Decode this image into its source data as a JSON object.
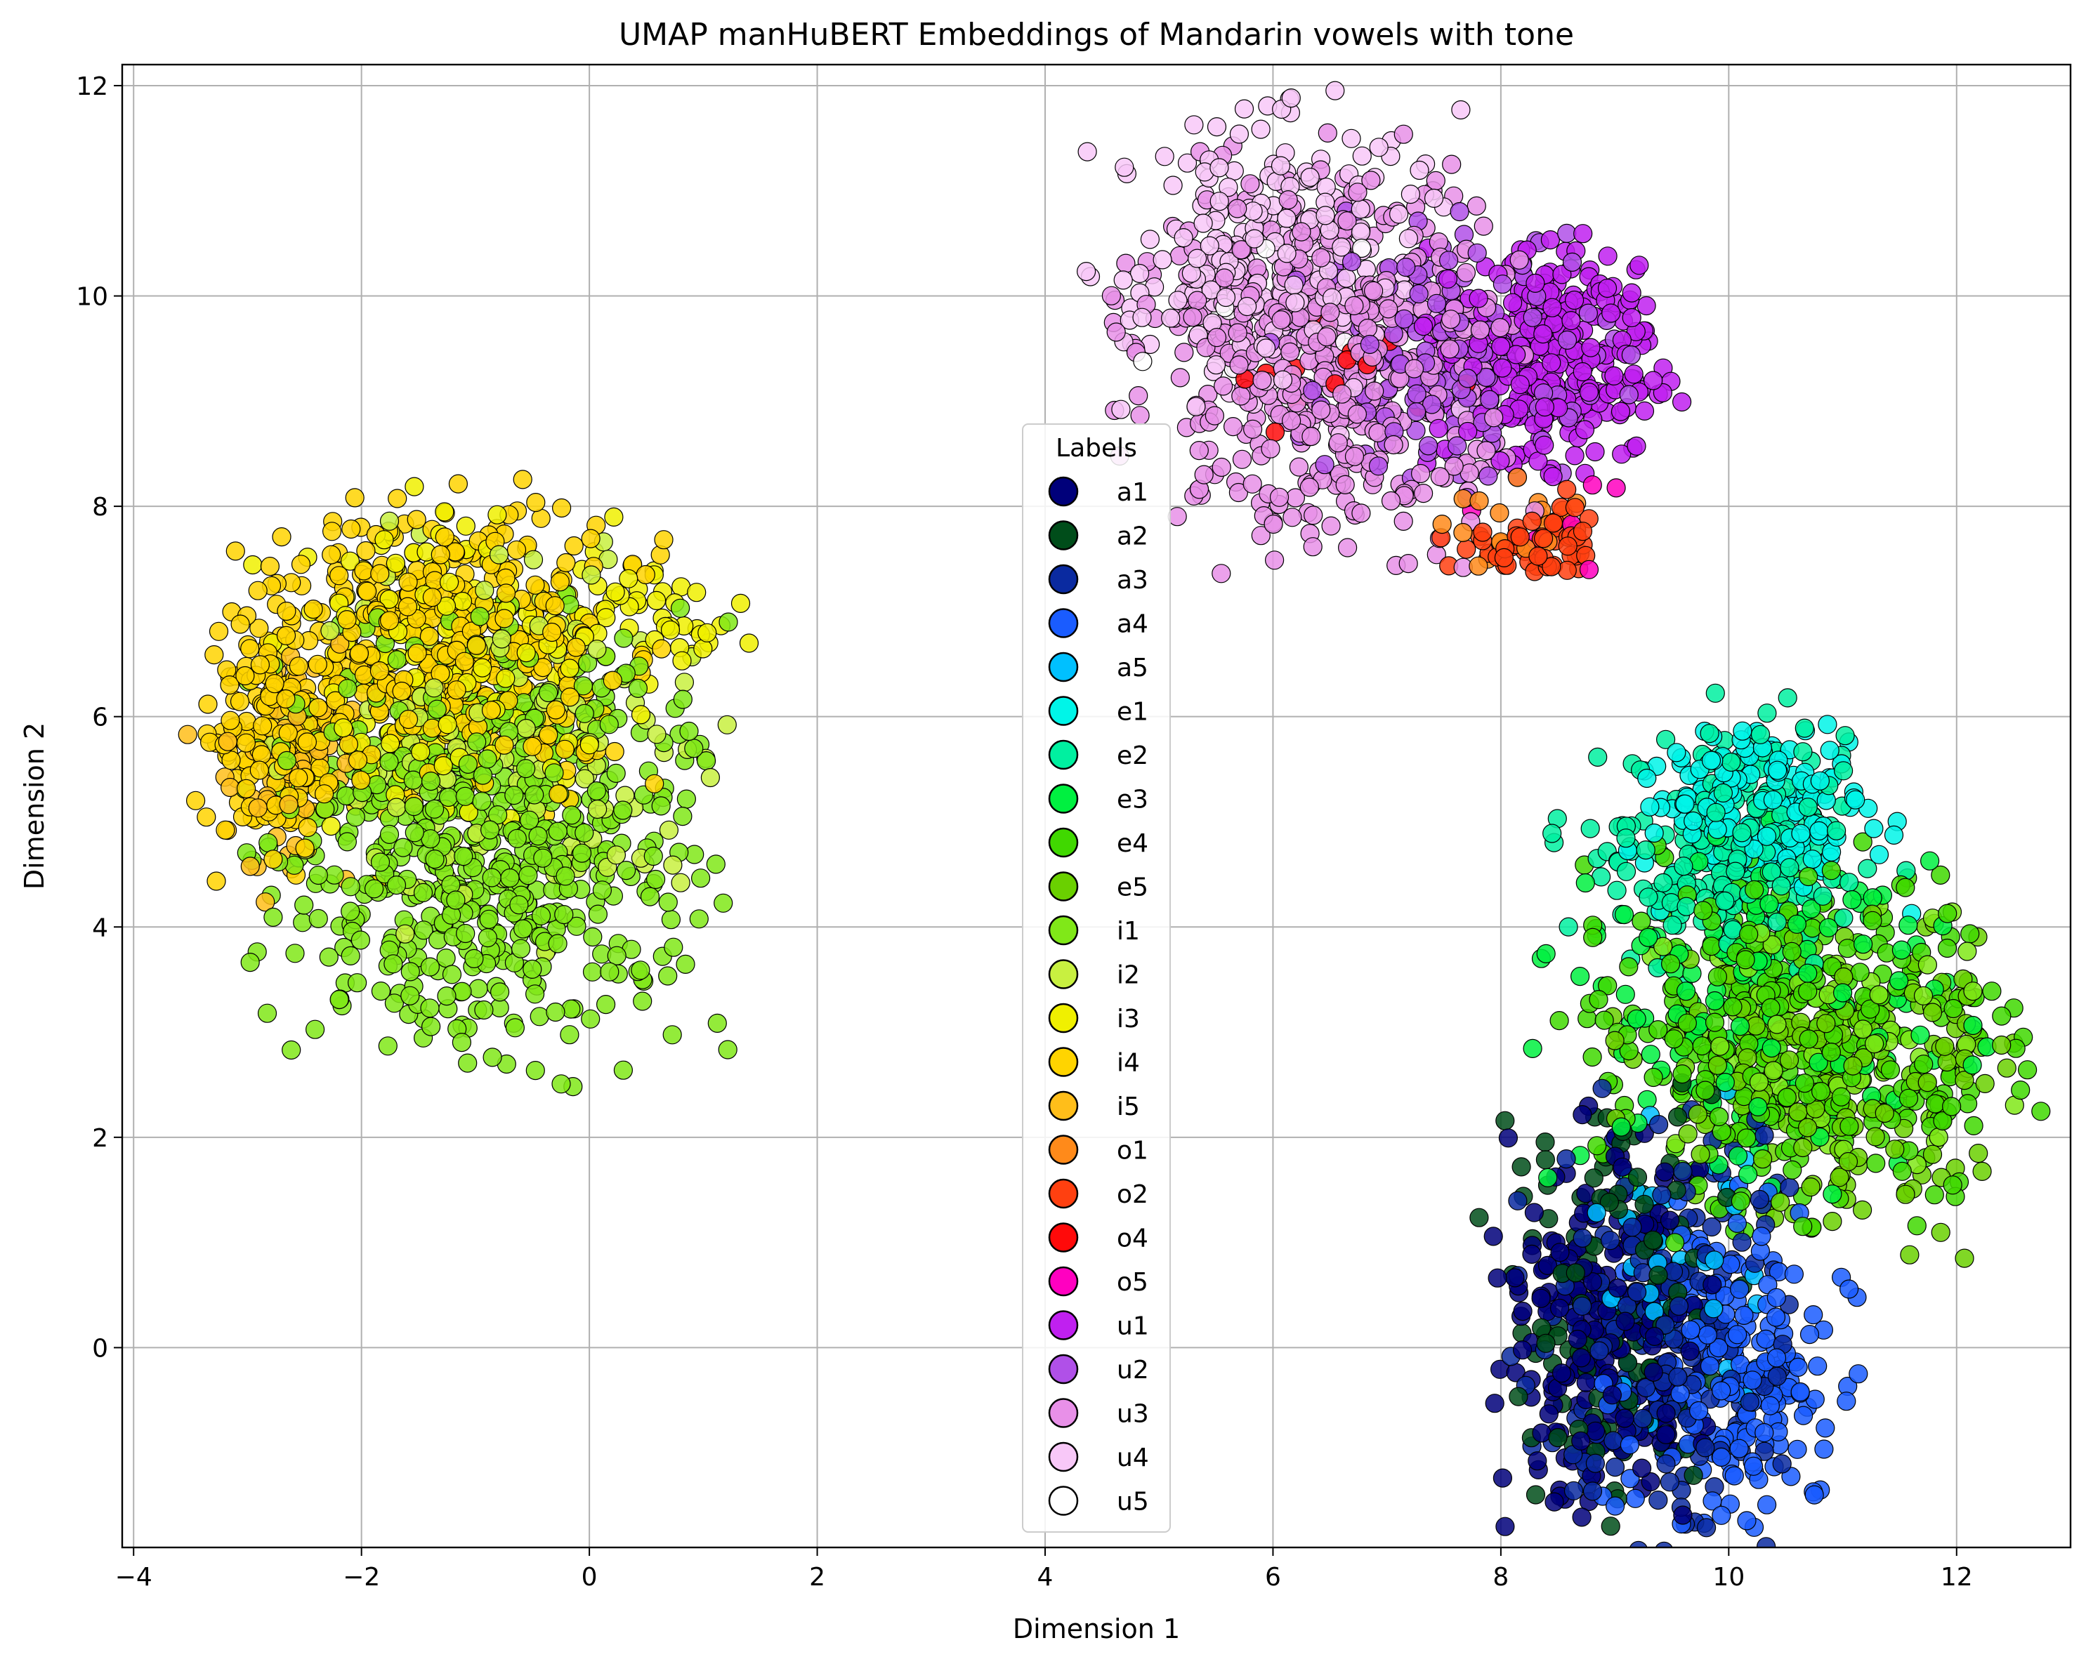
{
  "chart_data": {
    "type": "scatter",
    "title": "UMAP manHuBERT Embeddings of Mandarin vowels with tone",
    "xlabel": "Dimension 1",
    "ylabel": "Dimension 2",
    "xlim": [
      -4.1,
      13.0
    ],
    "ylim": [
      -1.9,
      12.2
    ],
    "xticks": [
      -4,
      -2,
      0,
      2,
      4,
      6,
      8,
      10,
      12
    ],
    "yticks": [
      0,
      2,
      4,
      6,
      8,
      10,
      12
    ],
    "xtick_labels": [
      "−4",
      "−2",
      "0",
      "2",
      "4",
      "6",
      "8",
      "10",
      "12"
    ],
    "ytick_labels": [
      "0",
      "2",
      "4",
      "6",
      "8",
      "10",
      "12"
    ],
    "grid": true,
    "legend": {
      "title": "Labels",
      "placement": "center"
    },
    "series": [
      {
        "name": "a1",
        "color": "#00007a",
        "clusters": [
          {
            "cx": 8.9,
            "cy": 0.2,
            "sx": 0.45,
            "sy": 0.9,
            "n": 220
          }
        ]
      },
      {
        "name": "a2",
        "color": "#004d1a",
        "clusters": [
          {
            "cx": 9.0,
            "cy": 0.4,
            "sx": 0.5,
            "sy": 0.9,
            "n": 120
          }
        ]
      },
      {
        "name": "a3",
        "color": "#0a2aa0",
        "clusters": [
          {
            "cx": 9.4,
            "cy": 0.2,
            "sx": 0.55,
            "sy": 1.0,
            "n": 200
          }
        ]
      },
      {
        "name": "a4",
        "color": "#1a5cff",
        "clusters": [
          {
            "cx": 10.0,
            "cy": -0.3,
            "sx": 0.5,
            "sy": 0.8,
            "n": 200
          }
        ]
      },
      {
        "name": "a5",
        "color": "#00c0ff",
        "clusters": [
          {
            "cx": 9.5,
            "cy": 0.8,
            "sx": 0.5,
            "sy": 0.8,
            "n": 40
          }
        ]
      },
      {
        "name": "e1",
        "color": "#00f5e8",
        "clusters": [
          {
            "cx": 10.3,
            "cy": 5.1,
            "sx": 0.55,
            "sy": 0.45,
            "n": 180
          }
        ]
      },
      {
        "name": "e2",
        "color": "#00f0a0",
        "clusters": [
          {
            "cx": 10.0,
            "cy": 4.8,
            "sx": 0.65,
            "sy": 0.6,
            "n": 220
          }
        ]
      },
      {
        "name": "e3",
        "color": "#00f040",
        "clusters": [
          {
            "cx": 10.3,
            "cy": 3.2,
            "sx": 0.9,
            "sy": 0.8,
            "n": 160
          }
        ]
      },
      {
        "name": "e4",
        "color": "#40d800",
        "clusters": [
          {
            "cx": 10.6,
            "cy": 2.9,
            "sx": 0.9,
            "sy": 0.8,
            "n": 360
          }
        ]
      },
      {
        "name": "e5",
        "color": "#6ad000",
        "clusters": [
          {
            "cx": 10.9,
            "cy": 2.7,
            "sx": 0.8,
            "sy": 0.8,
            "n": 200
          }
        ]
      },
      {
        "name": "i1",
        "color": "#80e818",
        "clusters": [
          {
            "cx": -0.9,
            "cy": 4.8,
            "sx": 0.9,
            "sy": 1.0,
            "n": 640
          },
          {
            "cx": 10.9,
            "cy": 3.0,
            "sx": 0.7,
            "sy": 0.6,
            "n": 80
          }
        ]
      },
      {
        "name": "i2",
        "color": "#c8f040",
        "clusters": [
          {
            "cx": -0.7,
            "cy": 5.8,
            "sx": 0.9,
            "sy": 0.9,
            "n": 160
          }
        ]
      },
      {
        "name": "i3",
        "color": "#f0f000",
        "clusters": [
          {
            "cx": -1.2,
            "cy": 6.6,
            "sx": 0.8,
            "sy": 0.7,
            "n": 160
          },
          {
            "cx": 0.6,
            "cy": 6.9,
            "sx": 0.4,
            "sy": 0.25,
            "n": 40
          }
        ]
      },
      {
        "name": "i4",
        "color": "#ffd400",
        "clusters": [
          {
            "cx": -1.3,
            "cy": 6.6,
            "sx": 0.85,
            "sy": 0.7,
            "n": 460
          },
          {
            "cx": -2.7,
            "cy": 5.7,
            "sx": 0.35,
            "sy": 0.6,
            "n": 140
          }
        ]
      },
      {
        "name": "i5",
        "color": "#ffbe1a",
        "clusters": [
          {
            "cx": -2.6,
            "cy": 5.6,
            "sx": 0.4,
            "sy": 0.6,
            "n": 70
          }
        ]
      },
      {
        "name": "o1",
        "color": "#ff8a1a",
        "clusters": [
          {
            "cx": 8.2,
            "cy": 7.8,
            "sx": 0.3,
            "sy": 0.2,
            "n": 18
          }
        ]
      },
      {
        "name": "o2",
        "color": "#ff4010",
        "clusters": [
          {
            "cx": 8.3,
            "cy": 7.7,
            "sx": 0.35,
            "sy": 0.2,
            "n": 60
          }
        ]
      },
      {
        "name": "o4",
        "color": "#ff0a0a",
        "clusters": [
          {
            "cx": 6.5,
            "cy": 9.3,
            "sx": 0.5,
            "sy": 0.3,
            "n": 18
          }
        ]
      },
      {
        "name": "o5",
        "color": "#ff00c0",
        "clusters": [
          {
            "cx": 8.4,
            "cy": 8.0,
            "sx": 0.4,
            "sy": 0.3,
            "n": 6
          }
        ]
      },
      {
        "name": "u1",
        "color": "#c020f0",
        "clusters": [
          {
            "cx": 8.4,
            "cy": 9.4,
            "sx": 0.5,
            "sy": 0.5,
            "n": 300
          }
        ]
      },
      {
        "name": "u2",
        "color": "#b050e8",
        "clusters": [
          {
            "cx": 7.6,
            "cy": 9.4,
            "sx": 0.7,
            "sy": 0.6,
            "n": 180
          }
        ]
      },
      {
        "name": "u3",
        "color": "#e890e8",
        "clusters": [
          {
            "cx": 6.5,
            "cy": 9.5,
            "sx": 0.8,
            "sy": 0.9,
            "n": 520
          }
        ]
      },
      {
        "name": "u4",
        "color": "#f8c8f8",
        "clusters": [
          {
            "cx": 6.0,
            "cy": 10.3,
            "sx": 0.7,
            "sy": 0.7,
            "n": 240
          }
        ]
      },
      {
        "name": "u5",
        "color": "#ffffff",
        "clusters": [
          {
            "cx": 6.2,
            "cy": 10.0,
            "sx": 0.6,
            "sy": 0.6,
            "n": 12
          }
        ]
      }
    ]
  }
}
